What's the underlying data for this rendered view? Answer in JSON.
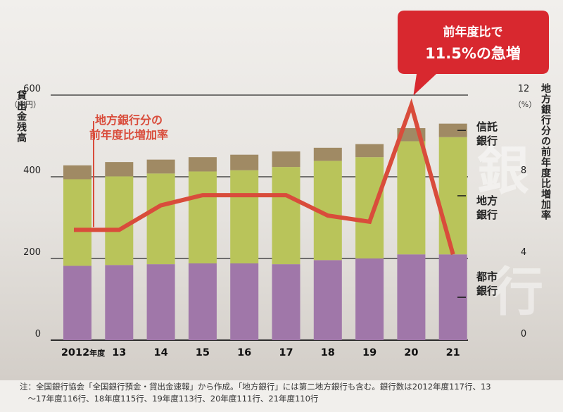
{
  "chart_data": {
    "type": "bar",
    "stacked": true,
    "categories": [
      "2012",
      "13",
      "14",
      "15",
      "16",
      "17",
      "18",
      "19",
      "20",
      "21"
    ],
    "first_category_suffix": "年度",
    "series": [
      {
        "name": "都市銀行",
        "label_lines": [
          "都市",
          "銀行"
        ],
        "color": "#a077a9",
        "values": [
          182,
          184,
          186,
          188,
          188,
          186,
          196,
          200,
          210,
          210
        ]
      },
      {
        "name": "地方銀行",
        "label_lines": [
          "地方",
          "銀行"
        ],
        "color": "#b9c45a",
        "values": [
          212,
          217,
          222,
          225,
          228,
          238,
          243,
          248,
          277,
          287
        ]
      },
      {
        "name": "信託銀行",
        "label_lines": [
          "信託",
          "銀行"
        ],
        "color": "#a08a64",
        "values": [
          34,
          35,
          34,
          35,
          38,
          38,
          32,
          32,
          32,
          33
        ]
      }
    ],
    "line": {
      "name": "地方銀行分の前年度比増加率",
      "color": "#d94c3b",
      "values": [
        5.4,
        5.4,
        6.6,
        7.1,
        7.1,
        7.1,
        6.1,
        5.8,
        11.5,
        4.2
      ]
    },
    "ylim_left": [
      0,
      600
    ],
    "yticks_left": [
      0,
      200,
      400,
      600
    ],
    "ylim_right": [
      0,
      12
    ],
    "yticks_right": [
      0,
      4,
      8,
      12
    ],
    "ylabel_left": "貸出金残高",
    "unit_left": "（兆円）",
    "ylabel_right": "地方銀行分の前年度比増加率",
    "unit_right": "（%）",
    "line_annotation": [
      "地方銀行分の",
      "前年度比増加率"
    ],
    "callout": [
      "前年度比で",
      "11.5%の急増"
    ],
    "watermark": [
      "銀",
      "行"
    ]
  },
  "note": {
    "line1": "注：全国銀行協会「全国銀行預金・貸出金速報」から作成。「地方銀行」には第二地方銀行も含む。銀行数は2012年度117行、13",
    "line2": "　～17年度116行、18年度115行、19年度113行、20年度111行、21年度110行"
  }
}
